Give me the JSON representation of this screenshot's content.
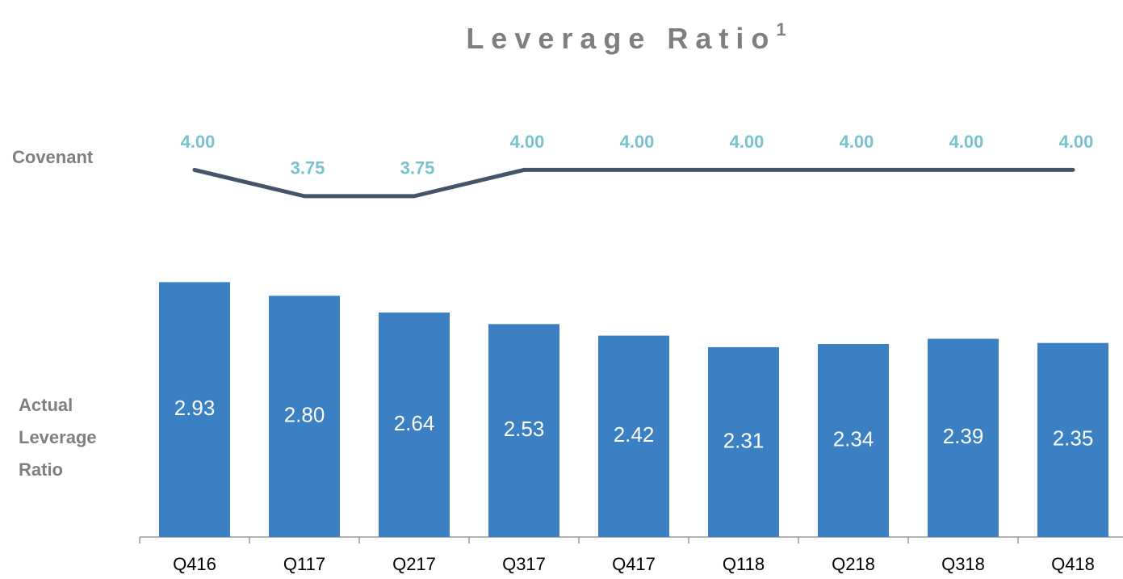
{
  "chart_data": {
    "type": "bar",
    "title": "Leverage Ratio",
    "title_footnote": "1",
    "line_row_label": "Covenant",
    "bar_row_label": [
      "Actual",
      "Leverage",
      "Ratio"
    ],
    "categories": [
      "Q416",
      "Q117",
      "Q217",
      "Q317",
      "Q417",
      "Q118",
      "Q218",
      "Q318",
      "Q418"
    ],
    "ylim": [
      0.5,
      4.85
    ],
    "series": [
      {
        "name": "Actual Leverage Ratio",
        "type": "bar",
        "color": "#3b80c3",
        "values": [
          2.93,
          2.8,
          2.64,
          2.53,
          2.42,
          2.31,
          2.34,
          2.39,
          2.35
        ],
        "value_labels": [
          "2.93",
          "2.80",
          "2.64",
          "2.53",
          "2.42",
          "2.31",
          "2.34",
          "2.39",
          "2.35"
        ]
      },
      {
        "name": "Covenant",
        "type": "line",
        "color": "#44546a",
        "label_color": "#79c3cf",
        "values": [
          4,
          3.75,
          3.75,
          4,
          4,
          4,
          4,
          4,
          4
        ],
        "value_labels": [
          "4.00",
          "3.75",
          "3.75",
          "4.00",
          "4.00",
          "4.00",
          "4.00",
          "4.00",
          "4.00"
        ]
      }
    ]
  }
}
